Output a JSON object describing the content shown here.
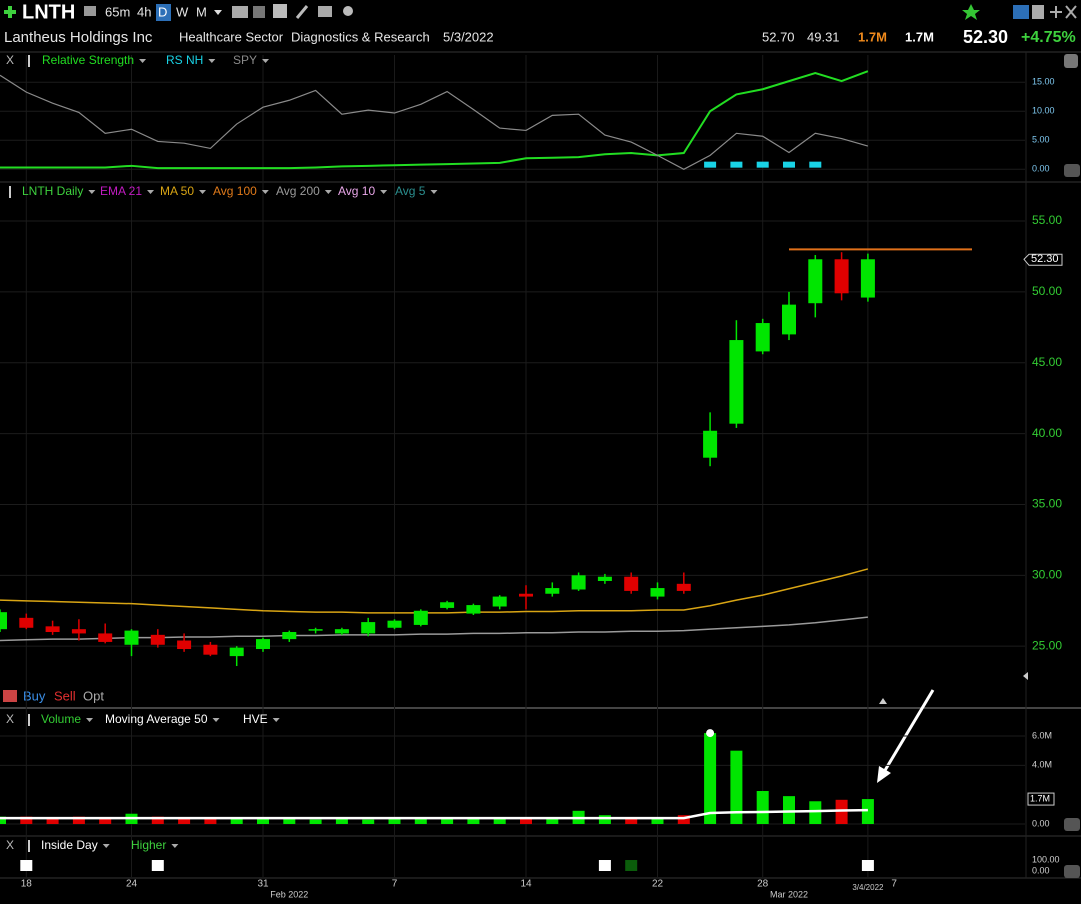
{
  "toolbar": {
    "symbol": "LNTH",
    "intervals": [
      "65m",
      "4h",
      "D",
      "W",
      "M"
    ]
  },
  "header": {
    "company": "Lantheus Holdings Inc",
    "sector": "Healthcare Sector",
    "industry": "Diagnostics & Research",
    "date": "5/3/2022",
    "high": "52.70",
    "low": "49.31",
    "volume": "1.7M",
    "avg_volume": "1.7M",
    "price": "52.30",
    "change": "+4.75%"
  },
  "trade_bar": {
    "buy": "Buy",
    "sell": "Sell",
    "opt": "Opt"
  },
  "chart_data": [
    {
      "type": "line",
      "close_label": "X",
      "grid": true,
      "ylim": [
        -1.5,
        19.7
      ],
      "yticks": [
        {
          "value": 15,
          "label": "15.00"
        },
        {
          "value": 10,
          "label": "10.00"
        },
        {
          "value": 5,
          "label": "5.00"
        },
        {
          "value": 0,
          "label": "0.00"
        }
      ],
      "series": [
        {
          "name": "Relative Strength",
          "color": "#22dd22",
          "values": [
            0.3,
            0.3,
            0.3,
            0.3,
            0.3,
            0.6,
            0.2,
            0.2,
            0.2,
            0.2,
            0.2,
            0.2,
            0.3,
            0.5,
            0.6,
            0.7,
            0.8,
            0.9,
            1.0,
            1.1,
            1.9,
            2.0,
            2.1,
            2.6,
            2.8,
            2.4,
            2.8,
            10.0,
            12.9,
            13.8,
            15.2,
            16.6,
            15.2,
            16.9
          ]
        },
        {
          "name": "RS NH",
          "color": "#19d3e6",
          "marker": "square",
          "values": [
            null,
            null,
            null,
            null,
            null,
            null,
            null,
            null,
            null,
            null,
            null,
            null,
            null,
            null,
            null,
            null,
            null,
            null,
            null,
            null,
            null,
            null,
            null,
            null,
            null,
            null,
            null,
            0.8,
            0.8,
            0.8,
            0.8,
            0.8,
            null,
            null
          ]
        },
        {
          "name": "SPY",
          "color": "#8a8a8a",
          "values": [
            16.2,
            13.3,
            11.4,
            9.8,
            6.2,
            6.9,
            4.8,
            4.5,
            3.6,
            7.8,
            10.7,
            11.9,
            13.6,
            9.5,
            10.2,
            9.7,
            11.2,
            13.4,
            10.3,
            7.1,
            6.7,
            9.3,
            9.5,
            5.9,
            4.7,
            2.4,
            0.0,
            2.4,
            6.2,
            5.7,
            2.9,
            6.2,
            5.3,
            4.0
          ]
        }
      ]
    },
    {
      "type": "candlestick",
      "title": "LNTH Daily",
      "grid": true,
      "ylim": [
        20.85,
        56.13
      ],
      "yticks": [
        {
          "value": 55,
          "label": "55.00"
        },
        {
          "value": 50,
          "label": "50.00"
        },
        {
          "value": 45,
          "label": "45.00"
        },
        {
          "value": 40,
          "label": "40.00"
        },
        {
          "value": 35,
          "label": "35.00"
        },
        {
          "value": 30,
          "label": "30.00"
        },
        {
          "value": 25,
          "label": "25.00"
        }
      ],
      "categories": [
        null,
        "18",
        null,
        null,
        null,
        "24",
        null,
        null,
        null,
        null,
        "31",
        null,
        null,
        null,
        null,
        "7",
        null,
        null,
        null,
        null,
        "14",
        null,
        null,
        null,
        null,
        "22",
        null,
        null,
        null,
        "28",
        null,
        null,
        null,
        "3/4/2022"
      ],
      "month_labels": [
        "Feb 2022",
        "Mar 2022"
      ],
      "next_label": "7",
      "up_color": "#00e600",
      "down_color": "#e00000",
      "open": [
        26.2,
        27.0,
        26.4,
        26.2,
        25.9,
        25.1,
        25.8,
        25.4,
        25.1,
        24.3,
        24.8,
        25.5,
        26.1,
        25.9,
        25.9,
        26.3,
        26.5,
        27.7,
        27.3,
        27.8,
        28.7,
        28.7,
        29.0,
        29.6,
        29.9,
        28.5,
        29.4,
        38.3,
        40.7,
        45.8,
        47.0,
        49.2,
        52.3,
        49.6
      ],
      "high": [
        27.6,
        27.3,
        26.8,
        26.9,
        26.6,
        26.2,
        26.2,
        25.9,
        25.3,
        25.0,
        25.6,
        26.1,
        26.3,
        26.3,
        27.0,
        26.9,
        27.6,
        28.2,
        28.0,
        28.6,
        29.3,
        29.5,
        30.2,
        30.1,
        30.2,
        29.5,
        30.2,
        41.5,
        48.0,
        48.1,
        50.0,
        52.6,
        52.8,
        52.7
      ],
      "low": [
        26.0,
        26.2,
        25.8,
        25.4,
        25.2,
        24.3,
        24.9,
        24.6,
        24.3,
        23.6,
        24.6,
        25.3,
        25.9,
        25.8,
        25.7,
        26.2,
        26.4,
        27.6,
        27.2,
        27.6,
        27.6,
        28.5,
        28.9,
        29.4,
        28.7,
        28.3,
        28.7,
        37.7,
        40.4,
        45.6,
        46.6,
        48.2,
        49.4,
        49.31
      ],
      "close": [
        27.4,
        26.3,
        26.0,
        25.9,
        25.3,
        26.1,
        25.1,
        24.8,
        24.4,
        24.9,
        25.5,
        26.0,
        26.2,
        26.2,
        26.7,
        26.8,
        27.5,
        28.1,
        27.9,
        28.5,
        28.5,
        29.1,
        30.0,
        29.9,
        28.9,
        29.1,
        28.9,
        40.2,
        46.6,
        47.8,
        49.1,
        52.3,
        49.9,
        52.3
      ],
      "series": [
        {
          "name": "EMA 21",
          "color": "#c21bc2"
        },
        {
          "name": "MA 50",
          "color": "#d9a514",
          "values": [
            28.25,
            28.2,
            28.15,
            28.1,
            28.05,
            28.0,
            27.9,
            27.8,
            27.7,
            27.6,
            27.5,
            27.45,
            27.4,
            27.4,
            27.35,
            27.35,
            27.35,
            27.35,
            27.4,
            27.4,
            27.45,
            27.45,
            27.5,
            27.5,
            27.5,
            27.55,
            27.55,
            27.85,
            28.25,
            28.6,
            29.05,
            29.5,
            29.95,
            30.45
          ]
        },
        {
          "name": "Avg 100",
          "color": "#e07a1a"
        },
        {
          "name": "Avg 200",
          "color": "#9a9a9a",
          "values": [
            25.4,
            25.45,
            25.5,
            25.5,
            25.55,
            25.6,
            25.6,
            25.65,
            25.65,
            25.7,
            25.7,
            25.75,
            25.75,
            25.8,
            25.8,
            25.8,
            25.85,
            25.85,
            25.9,
            25.9,
            25.95,
            25.95,
            26.0,
            26.0,
            26.05,
            26.05,
            26.1,
            26.2,
            26.3,
            26.4,
            26.5,
            26.65,
            26.85,
            27.05
          ]
        },
        {
          "name": "Avg 10",
          "color": "#e8a6e8"
        },
        {
          "name": "Avg 5",
          "color": "#2b8f8f"
        }
      ],
      "level_line": {
        "value": 53.0,
        "color": "#e0701a"
      },
      "last_price": {
        "value": 52.3,
        "label": "52.30"
      }
    },
    {
      "type": "bar",
      "close_label": "X",
      "grid": true,
      "ylim": [
        -0.75,
        6.41
      ],
      "yticks": [
        {
          "value": 6,
          "label": "6.0M"
        },
        {
          "value": 4,
          "label": "4.0M"
        },
        {
          "value": 0,
          "label": "0.00"
        }
      ],
      "series": [
        {
          "name": "Volume",
          "color": "#33cc33",
          "values": [
            0.5,
            0.5,
            0.4,
            0.5,
            0.4,
            0.7,
            0.5,
            0.4,
            0.4,
            0.4,
            0.4,
            0.4,
            0.3,
            0.4,
            0.3,
            0.4,
            0.4,
            0.4,
            0.4,
            0.4,
            0.4,
            0.4,
            0.9,
            0.6,
            0.4,
            0.4,
            0.6,
            6.2,
            5.0,
            2.25,
            1.9,
            1.55,
            1.65,
            1.7
          ]
        },
        {
          "name": "Moving Average 50",
          "color": "#ffffff",
          "values": [
            0.4,
            0.4,
            0.4,
            0.4,
            0.4,
            0.4,
            0.4,
            0.4,
            0.4,
            0.4,
            0.4,
            0.4,
            0.4,
            0.4,
            0.4,
            0.4,
            0.4,
            0.4,
            0.4,
            0.4,
            0.4,
            0.4,
            0.4,
            0.4,
            0.4,
            0.4,
            0.4,
            0.75,
            0.8,
            0.82,
            0.85,
            0.88,
            0.92,
            0.95
          ]
        },
        {
          "name": "HVE",
          "color": "#ffffff",
          "marker": "dot",
          "values": [
            null,
            null,
            null,
            null,
            null,
            null,
            null,
            null,
            null,
            null,
            null,
            null,
            null,
            null,
            null,
            null,
            null,
            null,
            null,
            null,
            null,
            null,
            null,
            null,
            null,
            null,
            null,
            6.2,
            null,
            null,
            null,
            null,
            null,
            null
          ]
        }
      ],
      "last_value": {
        "value": 1.7,
        "label": "1.7M"
      }
    },
    {
      "type": "signal",
      "close_label": "X",
      "grid": false,
      "ylim": [
        -63.6,
        145.5
      ],
      "yticks": [
        {
          "value": 100,
          "label": "100.00"
        },
        {
          "value": 0,
          "label": "0.00"
        }
      ],
      "series": [
        {
          "name": "Inside Day",
          "color": "#ffffff",
          "values": [
            null,
            100,
            null,
            null,
            null,
            null,
            100,
            null,
            null,
            null,
            null,
            null,
            null,
            null,
            null,
            null,
            null,
            null,
            null,
            null,
            null,
            null,
            null,
            100,
            null,
            null,
            null,
            null,
            null,
            null,
            null,
            null,
            null,
            100
          ]
        },
        {
          "name": "Higher",
          "color": "#1f9e1f",
          "values": [
            null,
            null,
            null,
            null,
            null,
            null,
            null,
            null,
            null,
            null,
            null,
            null,
            null,
            null,
            null,
            null,
            null,
            null,
            null,
            null,
            null,
            null,
            null,
            null,
            100,
            null,
            null,
            null,
            null,
            null,
            null,
            null,
            null,
            null
          ]
        }
      ]
    }
  ]
}
